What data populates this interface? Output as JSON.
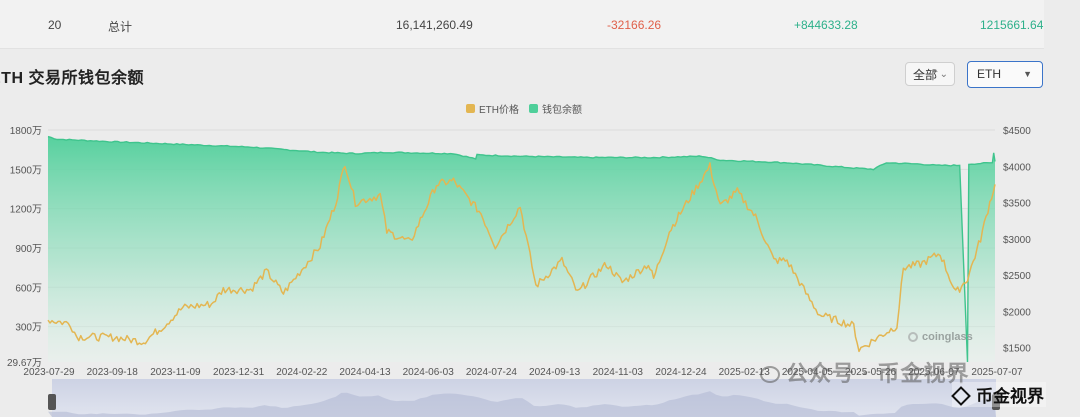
{
  "table_row": {
    "rank": "20",
    "label": "总计",
    "balance": "16,141,260.49",
    "change_1d": "-32166.26",
    "change_7d": "+844633.28",
    "change_30d": "1215661.64"
  },
  "header": {
    "title": "ETH 交易所钱包余额",
    "range_label": "全部",
    "range_arrow": "⌃⌄",
    "coin_label": "ETH",
    "coin_arrow": "▼"
  },
  "watermarks": {
    "source": "coinglass",
    "wechat": "公众号 · 币金视界",
    "brand": "币金视界"
  },
  "colors": {
    "price": "#e3b652",
    "balance": "#4fcf9a",
    "range_bar": "#d7dbe8"
  },
  "chart_data": {
    "type": "area+line",
    "title": "ETH 交易所钱包余额",
    "legend": [
      "ETH价格",
      "钱包余额"
    ],
    "x_ticks": [
      "2023-07-29",
      "2023-09-18",
      "2023-11-09",
      "2023-12-31",
      "2024-02-22",
      "2024-04-13",
      "2024-06-03",
      "2024-07-24",
      "2024-09-13",
      "2024-11-03",
      "2024-12-24",
      "2025-02-13",
      "2025-04-05",
      "2025-05-26",
      "2025-06-07",
      "2025-07-07"
    ],
    "y_left_ticks": [
      "1800万",
      "1500万",
      "1200万",
      "900万",
      "600万",
      "300万",
      "29.67万"
    ],
    "y_right_ticks": [
      "$4500",
      "$4000",
      "$3500",
      "$3000",
      "$2500",
      "$2000",
      "$1500"
    ],
    "y_left_range": [
      296700,
      18000000
    ],
    "y_right_range": [
      1300,
      4500
    ],
    "series": [
      {
        "name": "钱包余额",
        "unit": "ETH",
        "points": [
          [
            "2023-07-29",
            17500000
          ],
          [
            "2023-08-05",
            17300000
          ],
          [
            "2023-09-18",
            17100000
          ],
          [
            "2023-11-09",
            16900000
          ],
          [
            "2023-12-31",
            16700000
          ],
          [
            "2024-02-22",
            16300000
          ],
          [
            "2024-03-20",
            16200000
          ],
          [
            "2024-04-13",
            16300000
          ],
          [
            "2024-06-03",
            16200000
          ],
          [
            "2024-06-20",
            15800000
          ],
          [
            "2024-06-21",
            16100000
          ],
          [
            "2024-07-24",
            16000000
          ],
          [
            "2024-09-13",
            15900000
          ],
          [
            "2024-11-03",
            15900000
          ],
          [
            "2024-12-10",
            16000000
          ],
          [
            "2024-12-24",
            15700000
          ],
          [
            "2025-01-20",
            15600000
          ],
          [
            "2025-02-13",
            15500000
          ],
          [
            "2025-04-05",
            15100000
          ],
          [
            "2025-04-20",
            15000000
          ],
          [
            "2025-04-30",
            15500000
          ],
          [
            "2025-05-26",
            15400000
          ],
          [
            "2025-06-07",
            15300000
          ],
          [
            "2025-06-25",
            15300000
          ],
          [
            "2025-07-01",
            296700
          ],
          [
            "2025-07-02",
            15400000
          ],
          [
            "2025-07-20",
            15500000
          ],
          [
            "2025-07-21",
            16300000
          ],
          [
            "2025-07-22",
            15600000
          ]
        ]
      },
      {
        "name": "ETH价格",
        "unit": "USD",
        "points": [
          [
            "2023-07-29",
            1880
          ],
          [
            "2023-08-15",
            1830
          ],
          [
            "2023-08-20",
            1650
          ],
          [
            "2023-09-18",
            1640
          ],
          [
            "2023-10-10",
            1580
          ],
          [
            "2023-10-25",
            1790
          ],
          [
            "2023-11-09",
            2050
          ],
          [
            "2023-12-01",
            2100
          ],
          [
            "2023-12-10",
            2300
          ],
          [
            "2023-12-31",
            2300
          ],
          [
            "2024-01-12",
            2550
          ],
          [
            "2024-01-25",
            2250
          ],
          [
            "2024-02-22",
            2900
          ],
          [
            "2024-03-05",
            3500
          ],
          [
            "2024-03-12",
            4050
          ],
          [
            "2024-03-20",
            3500
          ],
          [
            "2024-04-08",
            3600
          ],
          [
            "2024-04-13",
            3100
          ],
          [
            "2024-05-01",
            2950
          ],
          [
            "2024-05-21",
            3750
          ],
          [
            "2024-06-03",
            3800
          ],
          [
            "2024-06-24",
            3350
          ],
          [
            "2024-07-05",
            2900
          ],
          [
            "2024-07-24",
            3450
          ],
          [
            "2024-08-05",
            2350
          ],
          [
            "2024-08-25",
            2700
          ],
          [
            "2024-09-06",
            2250
          ],
          [
            "2024-09-13",
            2400
          ],
          [
            "2024-09-28",
            2650
          ],
          [
            "2024-10-10",
            2400
          ],
          [
            "2024-10-30",
            2650
          ],
          [
            "2024-11-03",
            2450
          ],
          [
            "2024-11-15",
            3100
          ],
          [
            "2024-11-25",
            3400
          ],
          [
            "2024-12-16",
            4000
          ],
          [
            "2024-12-24",
            3450
          ],
          [
            "2025-01-06",
            3650
          ],
          [
            "2025-01-20",
            3300
          ],
          [
            "2025-02-03",
            2700
          ],
          [
            "2025-02-13",
            2700
          ],
          [
            "2025-03-01",
            2200
          ],
          [
            "2025-03-10",
            1950
          ],
          [
            "2025-04-05",
            1800
          ],
          [
            "2025-04-09",
            1470
          ],
          [
            "2025-04-20",
            1600
          ],
          [
            "2025-05-08",
            1800
          ],
          [
            "2025-05-13",
            2600
          ],
          [
            "2025-05-26",
            2650
          ],
          [
            "2025-06-10",
            2800
          ],
          [
            "2025-06-22",
            2250
          ],
          [
            "2025-07-01",
            2450
          ],
          [
            "2025-07-11",
            3000
          ],
          [
            "2025-07-18",
            3500
          ],
          [
            "2025-07-22",
            3750
          ]
        ]
      }
    ]
  }
}
